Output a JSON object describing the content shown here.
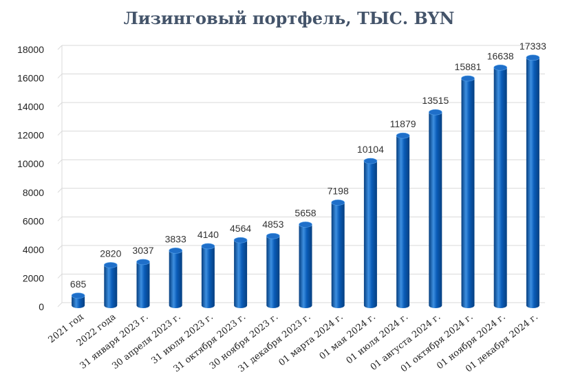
{
  "chart_data": {
    "type": "bar",
    "title": "Лизинговый портфель, ТЫС. BYN",
    "categories": [
      "2021 год",
      "2022 года",
      "31 января 2023 г.",
      "30 апреля 2023 г.",
      "31 июля 2023 г.",
      "31 октября 2023 г.",
      "30 ноября 2023 г.",
      "31 декабря 2023 г.",
      "01 марта 2024 г.",
      "01 мая 2024 г.",
      "01 июля 2024 г.",
      "01 августа 2024 г.",
      "01 октября 2024 г.",
      "01 ноября 2024 г.",
      "01 декабря 2024 г."
    ],
    "values": [
      685,
      2820,
      3037,
      3833,
      4140,
      4564,
      4853,
      5658,
      7198,
      10104,
      11879,
      13515,
      15881,
      16638,
      17333
    ],
    "ylim": [
      0,
      18000
    ],
    "yticks": [
      0,
      2000,
      4000,
      6000,
      8000,
      10000,
      12000,
      14000,
      16000,
      18000
    ],
    "grid": true,
    "colors": {
      "bar": "#0a5cb8",
      "bar_light": "#3d8fe0",
      "bar_dark": "#063f80",
      "top": "#1f6fc9",
      "grid": "#d9d9d9"
    }
  }
}
